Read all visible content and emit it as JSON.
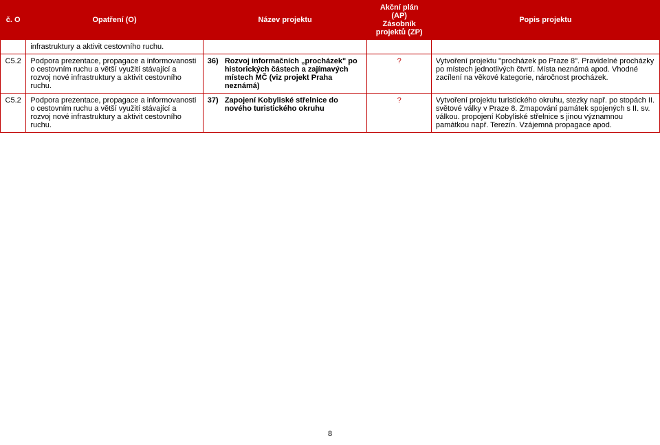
{
  "header": {
    "col_co": "č. O",
    "col_op": "Opatření (O)",
    "col_name": "Název projektu",
    "col_plan_line1": "Akční plán (AP)",
    "col_plan_line2": "Zásobník",
    "col_plan_line3": "projektů (ZP)",
    "col_desc": "Popis projektu"
  },
  "rows": [
    {
      "co": "",
      "op": "infrastruktury a aktivit cestovního ruchu.",
      "name_num": "",
      "name_text": "",
      "plan": "",
      "desc": ""
    },
    {
      "co": "C5.2",
      "op": "Podpora prezentace, propagace a informovanosti o cestovním ruchu a větší využití stávající a rozvoj nové infrastruktury a aktivit cestovního ruchu.",
      "name_num": "36)",
      "name_text": "Rozvoj informačních „procházek\" po historických částech a zajímavých místech MČ (viz projekt Praha neznámá)",
      "plan": "?",
      "desc": "Vytvoření projektu \"procházek po Praze 8\". Pravidelné procházky po místech jednotlivých čtvrtí. Místa neznámá apod. Vhodné zacílení na věkové kategorie, náročnost procházek."
    },
    {
      "co": "C5.2",
      "op": "Podpora prezentace, propagace a informovanosti o cestovním ruchu a větší využití stávající a rozvoj nové infrastruktury a aktivit cestovního ruchu.",
      "name_num": "37)",
      "name_text": "Zapojení Kobyliské střelnice do nového turistického okruhu",
      "plan": "?",
      "desc": "Vytvoření projektu turistického okruhu, stezky např. po stopách II. světové války v Praze 8. Zmapování památek spojených s II. sv. válkou. propojení Kobyliské střelnice s jinou významnou památkou např. Terezín. Vzájemná propagace apod."
    }
  ],
  "footer": "8",
  "colors": {
    "header_bg": "#c00000",
    "header_fg": "#ffffff",
    "border": "#c00000",
    "text": "#000000",
    "red_text": "#c00000",
    "page_bg": "#ffffff"
  }
}
